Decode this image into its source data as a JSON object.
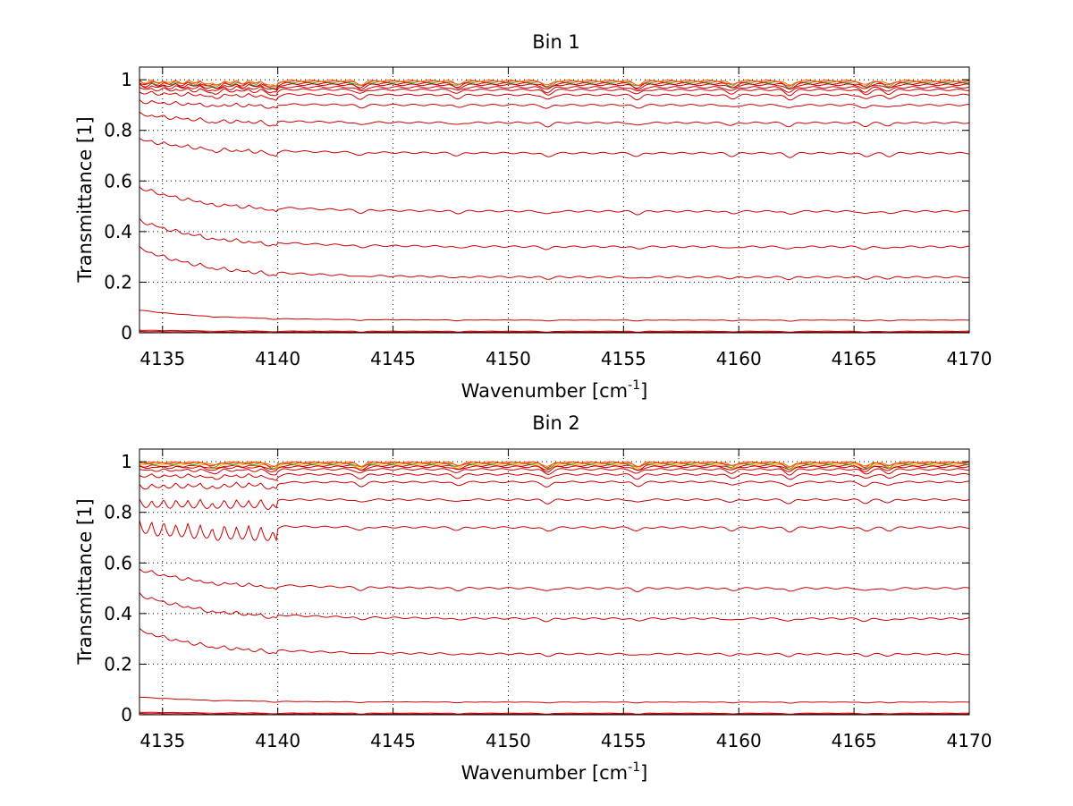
{
  "chart_data": [
    {
      "type": "line",
      "title": "Bin 1",
      "xlabel": "Wavenumber [cm",
      "xlabel_sup": "-1",
      "xlabel_end": "]",
      "ylabel": "Transmittance [1]",
      "xlim": [
        4134,
        4170
      ],
      "ylim": [
        0,
        1.05
      ],
      "xticks": [
        4135,
        4140,
        4145,
        4150,
        4155,
        4160,
        4165,
        4170
      ],
      "yticks": [
        0,
        0.2,
        0.4,
        0.6,
        0.8,
        1
      ],
      "ytick_labels": [
        "0",
        "0.2",
        "0.4",
        "0.6",
        "0.8",
        "1"
      ],
      "grid": true,
      "line_colors": [
        "#cc0000",
        "#ff2200",
        "#ff6600",
        "#ffaa00",
        "#33aa33",
        "#1f5fcc",
        "#aadd00"
      ],
      "series_levels": [
        0.0,
        0.003,
        0.006,
        0.05,
        0.22,
        0.34,
        0.48,
        0.71,
        0.83,
        0.9,
        0.94,
        0.96,
        0.97,
        0.98,
        0.985,
        0.99,
        0.993,
        0.996
      ],
      "early_start_levels": [
        0.0,
        0.005,
        0.01,
        0.09,
        0.34,
        0.45,
        0.58,
        0.77,
        0.87,
        0.92,
        0.955,
        0.97,
        0.98,
        0.985,
        0.99,
        0.993,
        0.996,
        0.998
      ]
    },
    {
      "type": "line",
      "title": "Bin 2",
      "xlabel": "Wavenumber [cm",
      "xlabel_sup": "-1",
      "xlabel_end": "]",
      "ylabel": "Transmittance [1]",
      "xlim": [
        4134,
        4170
      ],
      "ylim": [
        0,
        1.05
      ],
      "xticks": [
        4135,
        4140,
        4145,
        4150,
        4155,
        4160,
        4165,
        4170
      ],
      "yticks": [
        0,
        0.2,
        0.4,
        0.6,
        0.8,
        1
      ],
      "ytick_labels": [
        "0",
        "0.2",
        "0.4",
        "0.6",
        "0.8",
        "1"
      ],
      "grid": true,
      "line_colors": [
        "#cc0000",
        "#ff2200",
        "#ff6600",
        "#ffaa00",
        "#33aa33",
        "#1f5fcc",
        "#aadd00"
      ],
      "series_levels": [
        0.0,
        0.003,
        0.006,
        0.05,
        0.24,
        0.38,
        0.5,
        0.74,
        0.85,
        0.92,
        0.95,
        0.97,
        0.98,
        0.985,
        0.99,
        0.993,
        0.996,
        0.998
      ],
      "early_start_levels": [
        0.0,
        0.005,
        0.01,
        0.07,
        0.34,
        0.48,
        0.58,
        0.77,
        0.85,
        0.91,
        0.95,
        0.97,
        0.98,
        0.985,
        0.99,
        0.993,
        0.996,
        0.998
      ]
    }
  ]
}
